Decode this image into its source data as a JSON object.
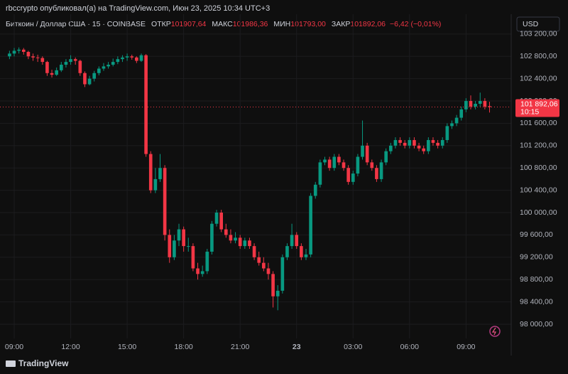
{
  "header": "rbccrypto опубликовал(а) на TradingView.com, Июн 23, 2025 10:34 UTC+3",
  "footer_brand": "TradingView",
  "chart_data": {
    "type": "candlestick",
    "symbol": "Биткоин / Доллар США · 15 · COINBASE",
    "ohlc_legend": [
      {
        "label": "ОТКР",
        "value": "101907,64"
      },
      {
        "label": "МАКС",
        "value": "101986,36"
      },
      {
        "label": "МИН",
        "value": "101793,00"
      },
      {
        "label": "ЗАКР",
        "value": "101892,06"
      }
    ],
    "change": "−6,42 (−0,01%)",
    "currency": "USD",
    "up_color": "#089981",
    "down_color": "#f23645",
    "ohlc": [
      [
        102800,
        102900,
        102750,
        102850
      ],
      [
        102850,
        102950,
        102800,
        102900
      ],
      [
        102900,
        102960,
        102850,
        102920
      ],
      [
        102920,
        102950,
        102830,
        102880
      ],
      [
        102880,
        102900,
        102750,
        102800
      ],
      [
        102800,
        102850,
        102720,
        102780
      ],
      [
        102780,
        102830,
        102700,
        102770
      ],
      [
        102770,
        102800,
        102650,
        102700
      ],
      [
        102700,
        102720,
        102450,
        102500
      ],
      [
        102500,
        102560,
        102420,
        102470
      ],
      [
        102470,
        102600,
        102450,
        102550
      ],
      [
        102550,
        102700,
        102520,
        102650
      ],
      [
        102650,
        102750,
        102600,
        102700
      ],
      [
        102700,
        102820,
        102650,
        102750
      ],
      [
        102750,
        102780,
        102650,
        102720
      ],
      [
        102720,
        102740,
        102450,
        102500
      ],
      [
        102500,
        102530,
        102250,
        102300
      ],
      [
        102300,
        102450,
        102280,
        102400
      ],
      [
        102400,
        102540,
        102350,
        102500
      ],
      [
        102500,
        102620,
        102460,
        102580
      ],
      [
        102580,
        102680,
        102540,
        102620
      ],
      [
        102620,
        102700,
        102580,
        102650
      ],
      [
        102650,
        102760,
        102620,
        102700
      ],
      [
        102700,
        102800,
        102660,
        102750
      ],
      [
        102750,
        102820,
        102700,
        102780
      ],
      [
        102780,
        102850,
        102720,
        102800
      ],
      [
        102800,
        102830,
        102740,
        102780
      ],
      [
        102780,
        102800,
        102680,
        102720
      ],
      [
        102720,
        102850,
        102700,
        102820
      ],
      [
        102820,
        102840,
        101000,
        101050
      ],
      [
        101050,
        101100,
        100350,
        100400
      ],
      [
        100400,
        100800,
        100350,
        100600
      ],
      [
        100600,
        101050,
        100550,
        100800
      ],
      [
        100800,
        100850,
        99500,
        99600
      ],
      [
        99600,
        99700,
        99100,
        99200
      ],
      [
        99200,
        99600,
        99150,
        99500
      ],
      [
        99500,
        99800,
        99400,
        99700
      ],
      [
        99700,
        99750,
        99300,
        99400
      ],
      [
        99400,
        99550,
        99300,
        99400
      ],
      [
        99400,
        99450,
        98950,
        99000
      ],
      [
        99000,
        99100,
        98800,
        98900
      ],
      [
        98900,
        99050,
        98850,
        98950
      ],
      [
        98950,
        99350,
        98900,
        99300
      ],
      [
        99300,
        99850,
        99250,
        99800
      ],
      [
        99800,
        100050,
        99750,
        100000
      ],
      [
        100000,
        100050,
        99650,
        99700
      ],
      [
        99700,
        99800,
        99550,
        99600
      ],
      [
        99600,
        99700,
        99450,
        99500
      ],
      [
        99500,
        99650,
        99450,
        99550
      ],
      [
        99550,
        99600,
        99350,
        99400
      ],
      [
        99400,
        99550,
        99350,
        99500
      ],
      [
        99500,
        99550,
        99350,
        99400
      ],
      [
        99400,
        99450,
        99150,
        99200
      ],
      [
        99200,
        99300,
        99050,
        99100
      ],
      [
        99100,
        99200,
        98950,
        99000
      ],
      [
        99000,
        99100,
        98800,
        98900
      ],
      [
        98900,
        98950,
        98300,
        98500
      ],
      [
        98500,
        98700,
        98250,
        98600
      ],
      [
        98600,
        99250,
        98550,
        99200
      ],
      [
        99200,
        99450,
        99150,
        99400
      ],
      [
        99400,
        99800,
        99350,
        99600
      ],
      [
        99600,
        99650,
        99350,
        99400
      ],
      [
        99400,
        99450,
        99150,
        99200
      ],
      [
        99200,
        99350,
        99150,
        99250
      ],
      [
        99250,
        100350,
        99200,
        100300
      ],
      [
        100300,
        100550,
        100250,
        100500
      ],
      [
        100500,
        100950,
        100450,
        100900
      ],
      [
        100900,
        101000,
        100850,
        100950
      ],
      [
        100950,
        101000,
        100750,
        100800
      ],
      [
        100800,
        101050,
        100750,
        101000
      ],
      [
        101000,
        101050,
        100850,
        100900
      ],
      [
        100900,
        100950,
        100750,
        100800
      ],
      [
        100800,
        100850,
        100500,
        100550
      ],
      [
        100550,
        100750,
        100500,
        100700
      ],
      [
        100700,
        101050,
        100650,
        101000
      ],
      [
        101000,
        101650,
        100950,
        101200
      ],
      [
        101200,
        101250,
        100850,
        100900
      ],
      [
        100900,
        100950,
        100750,
        100800
      ],
      [
        100800,
        100850,
        100550,
        100600
      ],
      [
        100600,
        100950,
        100550,
        100900
      ],
      [
        100900,
        101150,
        100850,
        101100
      ],
      [
        101100,
        101250,
        101050,
        101200
      ],
      [
        101200,
        101350,
        101150,
        101300
      ],
      [
        101300,
        101350,
        101200,
        101250
      ],
      [
        101250,
        101300,
        101150,
        101200
      ],
      [
        101200,
        101350,
        101150,
        101300
      ],
      [
        101300,
        101350,
        101150,
        101200
      ],
      [
        101200,
        101250,
        101100,
        101150
      ],
      [
        101150,
        101200,
        101050,
        101100
      ],
      [
        101100,
        101350,
        101050,
        101300
      ],
      [
        101300,
        101350,
        101200,
        101250
      ],
      [
        101250,
        101300,
        101150,
        101200
      ],
      [
        101200,
        101350,
        101150,
        101300
      ],
      [
        101300,
        101600,
        101250,
        101550
      ],
      [
        101550,
        101650,
        101500,
        101600
      ],
      [
        101600,
        101750,
        101550,
        101700
      ],
      [
        101700,
        101900,
        101650,
        101850
      ],
      [
        101850,
        102050,
        101800,
        102000
      ],
      [
        102000,
        102100,
        101850,
        101900
      ],
      [
        101900,
        102000,
        101850,
        101950
      ],
      [
        101950,
        102150,
        101900,
        102000
      ],
      [
        102000,
        102050,
        101850,
        101900
      ],
      [
        101907.64,
        101986.36,
        101793,
        101892.06
      ]
    ],
    "last_price_label": "101 892,06",
    "countdown": "10:15",
    "xlim": [
      -2.02,
      106.6
    ],
    "xticks": [
      {
        "value": 1,
        "label": "09:00"
      },
      {
        "value": 13,
        "label": "12:00"
      },
      {
        "value": 25,
        "label": "15:00"
      },
      {
        "value": 37,
        "label": "18:00"
      },
      {
        "value": 49,
        "label": "21:00"
      },
      {
        "value": 61,
        "label": "23"
      },
      {
        "value": 73,
        "label": "03:00"
      },
      {
        "value": 85,
        "label": "06:00"
      },
      {
        "value": 97,
        "label": "09:00"
      }
    ],
    "ylim": [
      97745,
      103300
    ],
    "yticks": [
      {
        "value": 98000,
        "label": "98 000,00"
      },
      {
        "value": 98400,
        "label": "98 400,00"
      },
      {
        "value": 98800,
        "label": "98 800,00"
      },
      {
        "value": 99200,
        "label": "99 200,00"
      },
      {
        "value": 99600,
        "label": "99 600,00"
      },
      {
        "value": 100000,
        "label": "100 000,00"
      },
      {
        "value": 100400,
        "label": "100 400,00"
      },
      {
        "value": 100800,
        "label": "100 800,00"
      },
      {
        "value": 101200,
        "label": "101 200,00"
      },
      {
        "value": 101600,
        "label": "101 600,00"
      },
      {
        "value": 102000,
        "label": "102 000,00"
      },
      {
        "value": 102400,
        "label": "102 400,00"
      },
      {
        "value": 102800,
        "label": "102 800,00"
      },
      {
        "value": 103200,
        "label": "103 200,00"
      }
    ],
    "grid": true
  }
}
